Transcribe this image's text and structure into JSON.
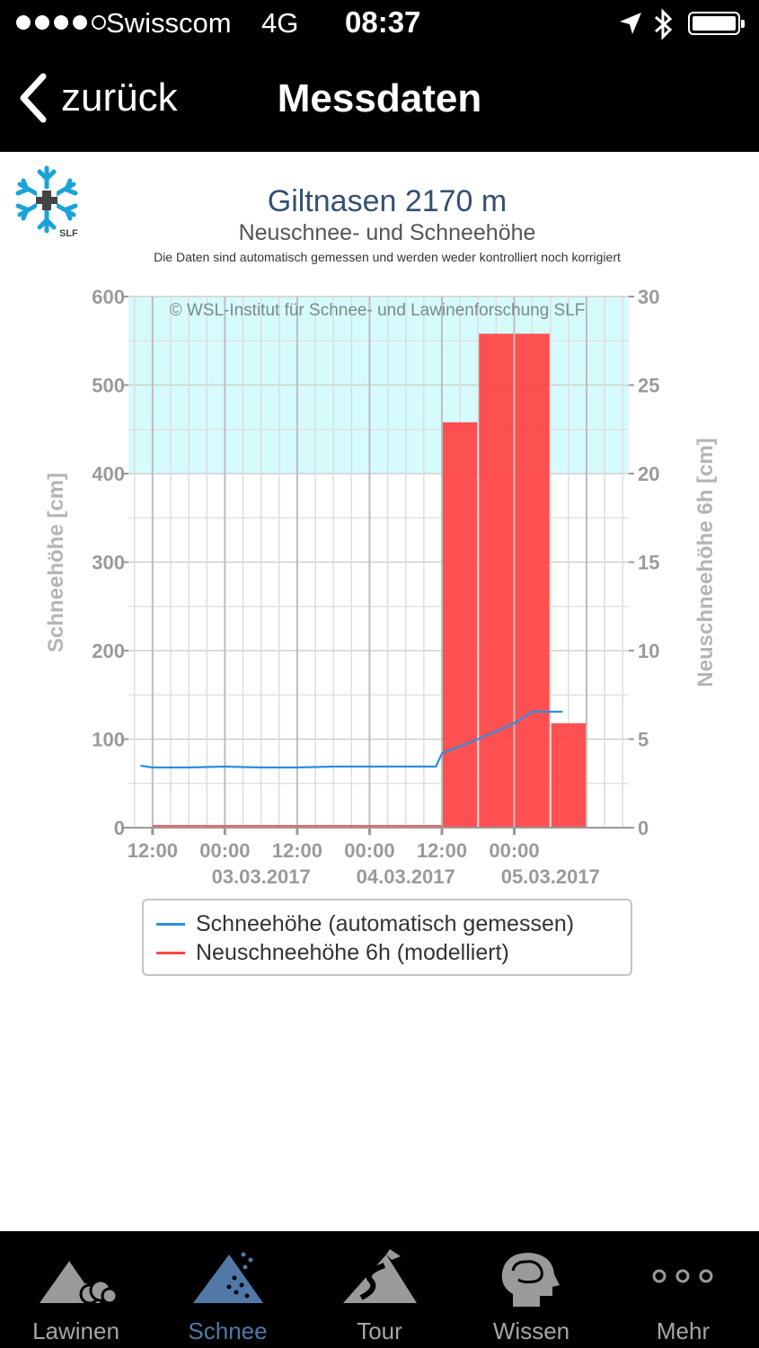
{
  "status_bar": {
    "carrier": "Swisscom",
    "network": "4G",
    "time": "08:37",
    "icons": [
      "signal-dots-icon",
      "location-arrow-icon",
      "bluetooth-icon",
      "battery-icon"
    ]
  },
  "nav": {
    "back_label": "zurück",
    "title": "Messdaten"
  },
  "chart_header": {
    "title": "Giltnasen 2170 m",
    "subtitle": "Neuschnee- und Schneehöhe",
    "note": "Die Daten sind automatisch gemessen und werden weder kontrolliert noch korrigiert",
    "watermark": "© WSL-Institut für Schnee- und Lawinenforschung SLF",
    "logo_text": "SLF"
  },
  "chart_data": {
    "type": "bar",
    "y_left": {
      "label": "Schneehöhe [cm]",
      "range": [
        0,
        600
      ],
      "ticks": [
        "0",
        "100",
        "200",
        "300",
        "400",
        "500",
        "600"
      ]
    },
    "y_right": {
      "label": "Neuschneehöhe 6h [cm]",
      "range": [
        0,
        30
      ],
      "ticks": [
        "0",
        "5",
        "10",
        "15",
        "20",
        "25",
        "30"
      ]
    },
    "x_range_hours": [
      -4,
      79
    ],
    "x_tick_labels": [
      "12:00",
      "00:00",
      "12:00",
      "00:00",
      "12:00",
      "00:00"
    ],
    "x_date_labels": [
      "03.03.2017",
      "04.03.2017",
      "05.03.2017"
    ],
    "highlight_band": {
      "from": 400,
      "to": 600,
      "color": "#d6fbfd"
    },
    "series": [
      {
        "name": "Schneehöhe (automatisch gemessen)",
        "axis": "left",
        "color": "#2d8ee0",
        "times": [
          "2017-03-02 10:00",
          "2017-03-02 12:00",
          "2017-03-02 18:00",
          "2017-03-03 00:00",
          "2017-03-03 06:00",
          "2017-03-03 12:00",
          "2017-03-03 18:00",
          "2017-03-04 00:00",
          "2017-03-04 06:00",
          "2017-03-04 11:00",
          "2017-03-04 12:00",
          "2017-03-04 18:00",
          "2017-03-05 00:00",
          "2017-03-05 03:00",
          "2017-03-05 06:00",
          "2017-03-05 08:00"
        ],
        "values": [
          70,
          68,
          68,
          69,
          68,
          68,
          69,
          69,
          69,
          69,
          84,
          100,
          118,
          131,
          131,
          131
        ]
      },
      {
        "name": "Neuschneehöhe 6h (modelliert)",
        "axis": "right",
        "color": "#ff4444",
        "bars": [
          {
            "from": "2017-03-02 12:00",
            "to": "2017-03-04 12:00",
            "value": 0.1
          },
          {
            "from": "2017-03-04 12:00",
            "to": "2017-03-04 18:00",
            "value": 22.9
          },
          {
            "from": "2017-03-04 18:00",
            "to": "2017-03-05 00:00",
            "value": 27.9
          },
          {
            "from": "2017-03-05 00:00",
            "to": "2017-03-05 06:00",
            "value": 27.9
          },
          {
            "from": "2017-03-05 06:00",
            "to": "2017-03-05 12:00",
            "value": 5.9
          }
        ]
      }
    ]
  },
  "legend": {
    "items": [
      {
        "label": "Schneehöhe (automatisch gemessen)",
        "color": "#2d8ee0"
      },
      {
        "label": "Neuschneehöhe 6h (modelliert)",
        "color": "#ff4444"
      }
    ]
  },
  "tabs": [
    {
      "label": "Lawinen",
      "icon": "avalanche-icon",
      "active": false
    },
    {
      "label": "Schnee",
      "icon": "snow-mountain-icon",
      "active": true
    },
    {
      "label": "Tour",
      "icon": "tour-path-icon",
      "active": false
    },
    {
      "label": "Wissen",
      "icon": "head-brain-icon",
      "active": false
    },
    {
      "label": "Mehr",
      "icon": "more-dots-icon",
      "active": false
    }
  ],
  "colors": {
    "accent": "#5079a8",
    "bar": "#ff4444",
    "line": "#2d8ee0",
    "title": "#35506f"
  }
}
